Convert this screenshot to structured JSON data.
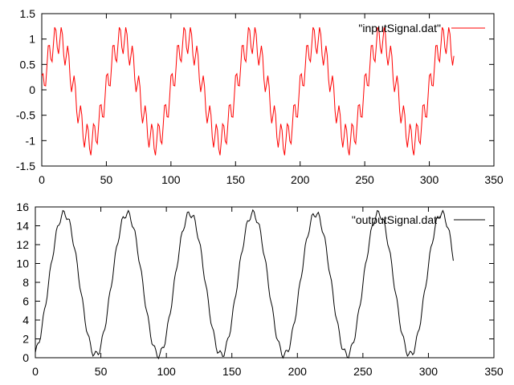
{
  "chart_data": [
    {
      "type": "line",
      "title": "",
      "xlabel": "",
      "ylabel": "",
      "xlim": [
        0,
        350
      ],
      "ylim": [
        -1.5,
        1.5
      ],
      "xticks": [
        0,
        50,
        100,
        150,
        200,
        250,
        300,
        350
      ],
      "yticks": [
        -1.5,
        -1,
        -0.5,
        0,
        0.5,
        1,
        1.5
      ],
      "xtick_labels": [
        "0",
        "50",
        "100",
        "150",
        "200",
        "250",
        "300",
        "350"
      ],
      "ytick_labels": [
        "-1.5",
        "-1",
        "-0.5",
        "0",
        "0.5",
        "1",
        "1.5"
      ],
      "legend_position": "top-right",
      "grid": false,
      "series": [
        {
          "name": "\"inputSignal.dat\"",
          "color": "#ff0000",
          "x_range": [
            0,
            319
          ],
          "description_components": {
            "base_amplitude": 1.0,
            "base_period": 50,
            "ripple_amplitude": 0.3,
            "ripple_period": 5
          }
        }
      ]
    },
    {
      "type": "line",
      "title": "",
      "xlabel": "",
      "ylabel": "",
      "xlim": [
        0,
        350
      ],
      "ylim": [
        0,
        16
      ],
      "xticks": [
        0,
        50,
        100,
        150,
        200,
        250,
        300,
        350
      ],
      "yticks": [
        0,
        2,
        4,
        6,
        8,
        10,
        12,
        14,
        16
      ],
      "xtick_labels": [
        "0",
        "50",
        "100",
        "150",
        "200",
        "250",
        "300",
        "350"
      ],
      "ytick_labels": [
        "0",
        "2",
        "4",
        "6",
        "8",
        "10",
        "12",
        "14",
        "16"
      ],
      "legend_position": "top-right",
      "grid": false,
      "series": [
        {
          "name": "\"outputSignal.dat\"",
          "color": "#000000",
          "x_range": [
            0,
            319
          ],
          "description_components": {
            "offset": 7.8,
            "base_amplitude": 7.5,
            "base_period": 48,
            "phase_peak_x": 22,
            "ripple_amplitude": 0.4,
            "ripple_period": 5
          }
        }
      ]
    }
  ]
}
